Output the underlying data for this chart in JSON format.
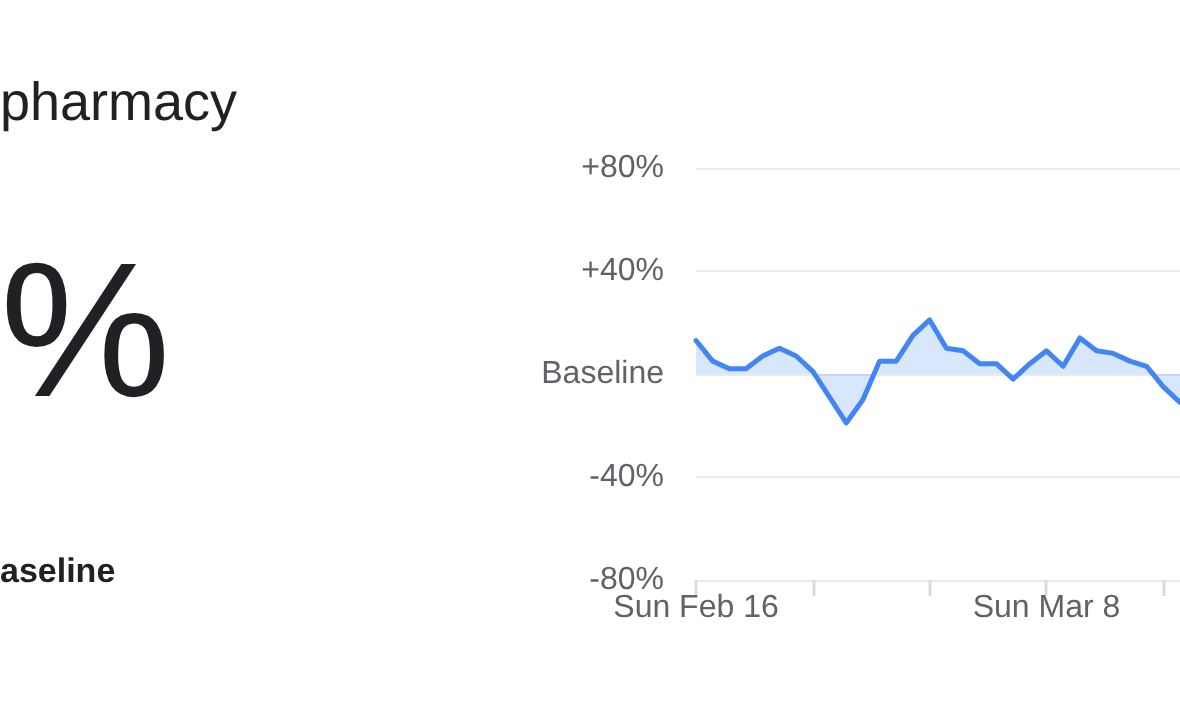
{
  "chart_data": {
    "type": "area",
    "title": "pharmacy",
    "annotations": [
      "%",
      "aseline"
    ],
    "x": [
      "--02-16",
      "--02-17",
      "--02-18",
      "--02-19",
      "--02-20",
      "--02-21",
      "--02-22",
      "--02-23",
      "--02-24",
      "--02-25",
      "--02-26",
      "--02-27",
      "--02-28",
      "--02-29",
      "--03-01",
      "--03-02",
      "--03-03",
      "--03-04",
      "--03-05",
      "--03-06",
      "--03-07",
      "--03-08",
      "--03-09",
      "--03-10",
      "--03-11",
      "--03-12",
      "--03-13",
      "--03-14",
      "--03-15",
      "--03-16"
    ],
    "series": [
      {
        "color": "#4285f4",
        "values": [
          13,
          5,
          2,
          2,
          7,
          10,
          7,
          1,
          -9,
          -19,
          -10,
          5,
          5,
          15,
          21,
          10,
          9,
          4,
          4,
          -2,
          4,
          9,
          3,
          14,
          9,
          8,
          5,
          3,
          -5,
          -11
        ]
      }
    ],
    "xlim": [
      "--02-16",
      "--03-16"
    ],
    "xticks": [
      {
        "value": "--02-16",
        "label": "Sun Feb 16"
      },
      {
        "value": "--02-23",
        "label": null
      },
      {
        "value": "--03-01",
        "label": null
      },
      {
        "value": "--03-08",
        "label": "Sun Mar 8"
      },
      {
        "value": "--03-15",
        "label": null
      }
    ],
    "ylim": [
      -80,
      80
    ],
    "yticks": [
      {
        "value": 80,
        "label": "+80%"
      },
      {
        "value": 40,
        "label": "+40%"
      },
      {
        "value": 0,
        "label": "Baseline"
      },
      {
        "value": -40,
        "label": "-40%"
      },
      {
        "value": -80,
        "label": "-80%"
      }
    ],
    "grid": "y"
  }
}
